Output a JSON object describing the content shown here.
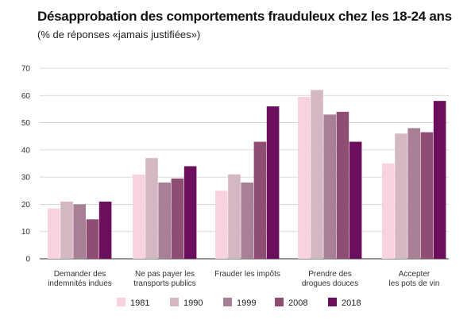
{
  "chart_data": {
    "type": "bar",
    "title": "Désapprobation des comportements frauduleux chez les 18-24 ans",
    "subtitle": "(% de réponses «jamais justifiées»)",
    "categories": [
      [
        "Demander des",
        "indemnités indues"
      ],
      [
        "Ne pas payer les",
        "transports publics"
      ],
      [
        "Frauder les impôts"
      ],
      [
        "Prendre des",
        "drogues douces"
      ],
      [
        "Accepter",
        "les pots de vin"
      ]
    ],
    "series": [
      {
        "name": "1981",
        "color": "#f8d3de",
        "values": [
          18.5,
          31,
          25,
          59.5,
          35
        ]
      },
      {
        "name": "1990",
        "color": "#d3b7c2",
        "values": [
          21,
          37,
          31,
          62,
          46
        ]
      },
      {
        "name": "1999",
        "color": "#a97f95",
        "values": [
          20,
          28,
          28,
          53,
          48
        ]
      },
      {
        "name": "2008",
        "color": "#8f4d74",
        "values": [
          14.5,
          29.5,
          43,
          54,
          46.5
        ]
      },
      {
        "name": "2018",
        "color": "#6b0f5c",
        "values": [
          21,
          34,
          56,
          43,
          58
        ]
      }
    ],
    "yticks": [
      0,
      10,
      20,
      30,
      40,
      50,
      60,
      70
    ],
    "ylim": [
      0,
      70
    ],
    "xlabel": "",
    "ylabel": "",
    "grid": true,
    "legend_position": "bottom"
  }
}
